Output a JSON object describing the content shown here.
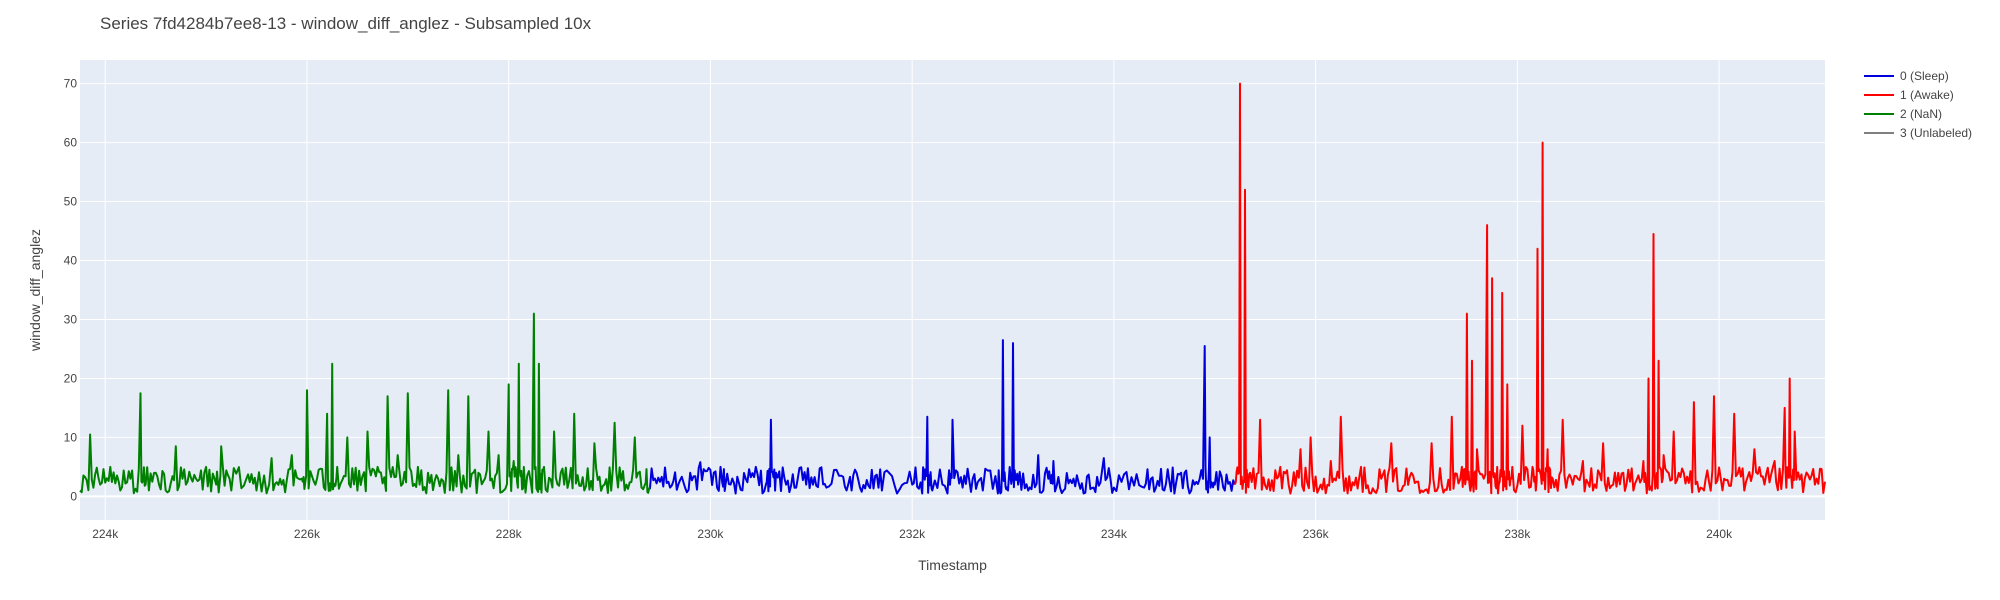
{
  "chart_data": {
    "type": "line",
    "title": "Series 7fd4284b7ee8-13 - window_diff_anglez - Subsampled 10x",
    "xlabel": "Timestamp",
    "ylabel": "window_diff_anglez",
    "xlim": [
      223750,
      241050
    ],
    "ylim": [
      -4,
      74
    ],
    "x_ticks": [
      224000,
      226000,
      228000,
      230000,
      232000,
      234000,
      236000,
      238000,
      240000
    ],
    "x_tick_labels": [
      "224k",
      "226k",
      "228k",
      "230k",
      "232k",
      "234k",
      "236k",
      "238k",
      "240k"
    ],
    "y_ticks": [
      0,
      10,
      20,
      30,
      40,
      50,
      60,
      70
    ],
    "y_tick_labels": [
      "0",
      "10",
      "20",
      "30",
      "40",
      "50",
      "60",
      "70"
    ],
    "grid": true,
    "legend_position": "right",
    "series": [
      {
        "name": "0 (Sleep)",
        "color": "#0000dd",
        "segments": [
          {
            "x_start": 229400,
            "x_end": 235200,
            "points": [
              [
                229400,
                1.2
              ],
              [
                229500,
                2.5
              ],
              [
                229600,
                1.5
              ],
              [
                229700,
                2.8
              ],
              [
                229800,
                4
              ],
              [
                229900,
                5.8
              ],
              [
                230000,
                4.5
              ],
              [
                230100,
                5
              ],
              [
                230150,
                2
              ],
              [
                230250,
                0.5
              ],
              [
                230350,
                3
              ],
              [
                230450,
                5
              ],
              [
                230550,
                2
              ],
              [
                230600,
                13
              ],
              [
                230650,
                4
              ],
              [
                230750,
                2
              ],
              [
                230850,
                1.5
              ],
              [
                230950,
                2
              ],
              [
                231050,
                1.8
              ],
              [
                231150,
                1.5
              ],
              [
                231300,
                3.5
              ],
              [
                231400,
                1
              ],
              [
                231500,
                0.8
              ],
              [
                231600,
                4.5
              ],
              [
                231700,
                1
              ],
              [
                231850,
                0.5
              ],
              [
                232000,
                2
              ],
              [
                232100,
                0.5
              ],
              [
                232150,
                13.5
              ],
              [
                232200,
                1
              ],
              [
                232350,
                0.5
              ],
              [
                232400,
                13
              ],
              [
                232500,
                1.5
              ],
              [
                232600,
                3
              ],
              [
                232700,
                1
              ],
              [
                232850,
                0.5
              ],
              [
                232900,
                26.5
              ],
              [
                232950,
                1
              ],
              [
                233000,
                26
              ],
              [
                233050,
                2
              ],
              [
                233150,
                1
              ],
              [
                233250,
                7
              ],
              [
                233350,
                3
              ],
              [
                233400,
                6
              ],
              [
                233500,
                1
              ],
              [
                233600,
                3
              ],
              [
                233700,
                0.5
              ],
              [
                233800,
                1.5
              ],
              [
                233900,
                6.5
              ],
              [
                234000,
                1.5
              ],
              [
                234150,
                1.2
              ],
              [
                234300,
                1.5
              ],
              [
                234400,
                0.8
              ],
              [
                234500,
                1
              ],
              [
                234600,
                0.5
              ],
              [
                234700,
                4
              ],
              [
                234800,
                2
              ],
              [
                234900,
                25.5
              ],
              [
                234950,
                10
              ],
              [
                235000,
                2
              ],
              [
                235100,
                1
              ],
              [
                235200,
                2
              ]
            ]
          }
        ]
      },
      {
        "name": "1 (Awake)",
        "color": "#ff0000",
        "segments": [
          {
            "x_start": 235200,
            "x_end": 241050,
            "points": [
              [
                235200,
                2
              ],
              [
                235250,
                70
              ],
              [
                235300,
                52
              ],
              [
                235350,
                4
              ],
              [
                235450,
                13
              ],
              [
                235550,
                1
              ],
              [
                235650,
                5
              ],
              [
                235750,
                0.5
              ],
              [
                235850,
                8
              ],
              [
                235950,
                10
              ],
              [
                236050,
                2
              ],
              [
                236150,
                6
              ],
              [
                236250,
                13.5
              ],
              [
                236350,
                1
              ],
              [
                236450,
                5
              ],
              [
                236550,
                0.5
              ],
              [
                236650,
                3
              ],
              [
                236750,
                9
              ],
              [
                236850,
                1
              ],
              [
                236950,
                4
              ],
              [
                237050,
                1
              ],
              [
                237150,
                9
              ],
              [
                237250,
                2
              ],
              [
                237350,
                13.5
              ],
              [
                237450,
                5
              ],
              [
                237500,
                31
              ],
              [
                237550,
                23
              ],
              [
                237600,
                8
              ],
              [
                237700,
                46
              ],
              [
                237750,
                37
              ],
              [
                237800,
                5
              ],
              [
                237850,
                34.5
              ],
              [
                237900,
                19
              ],
              [
                237950,
                5
              ],
              [
                238050,
                12
              ],
              [
                238150,
                5
              ],
              [
                238200,
                42
              ],
              [
                238250,
                60
              ],
              [
                238300,
                8
              ],
              [
                238350,
                3
              ],
              [
                238450,
                13
              ],
              [
                238550,
                2
              ],
              [
                238650,
                6
              ],
              [
                238750,
                1
              ],
              [
                238850,
                9
              ],
              [
                238950,
                2
              ],
              [
                239050,
                4
              ],
              [
                239150,
                1
              ],
              [
                239250,
                6
              ],
              [
                239300,
                20
              ],
              [
                239350,
                44.5
              ],
              [
                239400,
                23
              ],
              [
                239450,
                7
              ],
              [
                239550,
                11
              ],
              [
                239650,
                4
              ],
              [
                239750,
                16
              ],
              [
                239850,
                1
              ],
              [
                239950,
                17
              ],
              [
                240050,
                3
              ],
              [
                240150,
                14
              ],
              [
                240250,
                1
              ],
              [
                240350,
                8
              ],
              [
                240450,
                2
              ],
              [
                240550,
                6
              ],
              [
                240650,
                15
              ],
              [
                240700,
                20
              ],
              [
                240750,
                11
              ],
              [
                240850,
                3
              ],
              [
                240950,
                2
              ],
              [
                241050,
                2.5
              ]
            ]
          }
        ]
      },
      {
        "name": "2 (NaN)",
        "color": "#008000",
        "segments": [
          {
            "x_start": 223750,
            "x_end": 229400,
            "points": [
              [
                223750,
                1
              ],
              [
                223850,
                10.5
              ],
              [
                223950,
                2
              ],
              [
                224050,
                5
              ],
              [
                224150,
                1
              ],
              [
                224250,
                3
              ],
              [
                224350,
                17.5
              ],
              [
                224400,
                2
              ],
              [
                224500,
                4
              ],
              [
                224600,
                1
              ],
              [
                224700,
                8.5
              ],
              [
                224800,
                2
              ],
              [
                224900,
                3
              ],
              [
                225000,
                5
              ],
              [
                225100,
                2
              ],
              [
                225150,
                8.5
              ],
              [
                225250,
                1
              ],
              [
                225400,
                3
              ],
              [
                225500,
                1
              ],
              [
                225650,
                6.5
              ],
              [
                225750,
                2
              ],
              [
                225850,
                7
              ],
              [
                225950,
                3
              ],
              [
                226000,
                18
              ],
              [
                226100,
                3
              ],
              [
                226200,
                14
              ],
              [
                226250,
                22.5
              ],
              [
                226300,
                5
              ],
              [
                226400,
                10
              ],
              [
                226500,
                1
              ],
              [
                226600,
                11
              ],
              [
                226700,
                5
              ],
              [
                226800,
                17
              ],
              [
                226900,
                7
              ],
              [
                227000,
                17.5
              ],
              [
                227100,
                5
              ],
              [
                227200,
                4
              ],
              [
                227300,
                3
              ],
              [
                227400,
                18
              ],
              [
                227500,
                7
              ],
              [
                227600,
                17
              ],
              [
                227700,
                4
              ],
              [
                227800,
                11
              ],
              [
                227900,
                7
              ],
              [
                228000,
                19
              ],
              [
                228050,
                6
              ],
              [
                228100,
                22.5
              ],
              [
                228150,
                5
              ],
              [
                228250,
                31
              ],
              [
                228300,
                22.5
              ],
              [
                228350,
                5
              ],
              [
                228450,
                11
              ],
              [
                228550,
                2
              ],
              [
                228650,
                14
              ],
              [
                228750,
                1
              ],
              [
                228850,
                9
              ],
              [
                228950,
                2
              ],
              [
                229050,
                12.5
              ],
              [
                229150,
                1
              ],
              [
                229250,
                10
              ],
              [
                229350,
                2
              ],
              [
                229400,
                1.5
              ]
            ]
          }
        ]
      },
      {
        "name": "3 (Unlabeled)",
        "color": "#808080",
        "segments": []
      }
    ]
  }
}
